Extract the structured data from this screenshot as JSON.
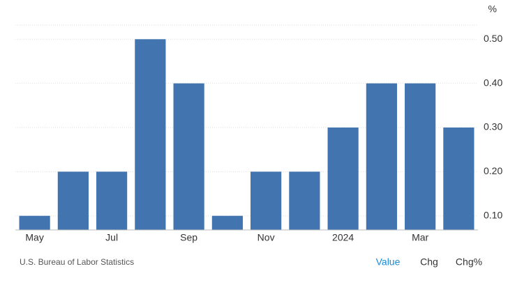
{
  "chart_data": {
    "type": "bar",
    "unit": "%",
    "categories": [
      "May",
      null,
      "Jul",
      null,
      "Sep",
      null,
      "Nov",
      null,
      "2024",
      null,
      "Mar",
      null
    ],
    "values": [
      0.1,
      0.2,
      0.2,
      0.5,
      0.4,
      0.1,
      0.2,
      0.2,
      0.3,
      0.4,
      0.4,
      0.3
    ],
    "color": "#4275b0",
    "ylim": [
      0.068,
      0.532
    ],
    "yticks": [
      {
        "value": 0.1,
        "label": "0.10"
      },
      {
        "value": 0.2,
        "label": "0.20"
      },
      {
        "value": 0.3,
        "label": "0.30"
      },
      {
        "value": 0.4,
        "label": "0.40"
      },
      {
        "value": 0.5,
        "label": "0.50"
      }
    ],
    "grid": true,
    "source": "U.S. Bureau of Labor Statistics",
    "buttons": [
      "Value",
      "Chg",
      "Chg%"
    ]
  }
}
